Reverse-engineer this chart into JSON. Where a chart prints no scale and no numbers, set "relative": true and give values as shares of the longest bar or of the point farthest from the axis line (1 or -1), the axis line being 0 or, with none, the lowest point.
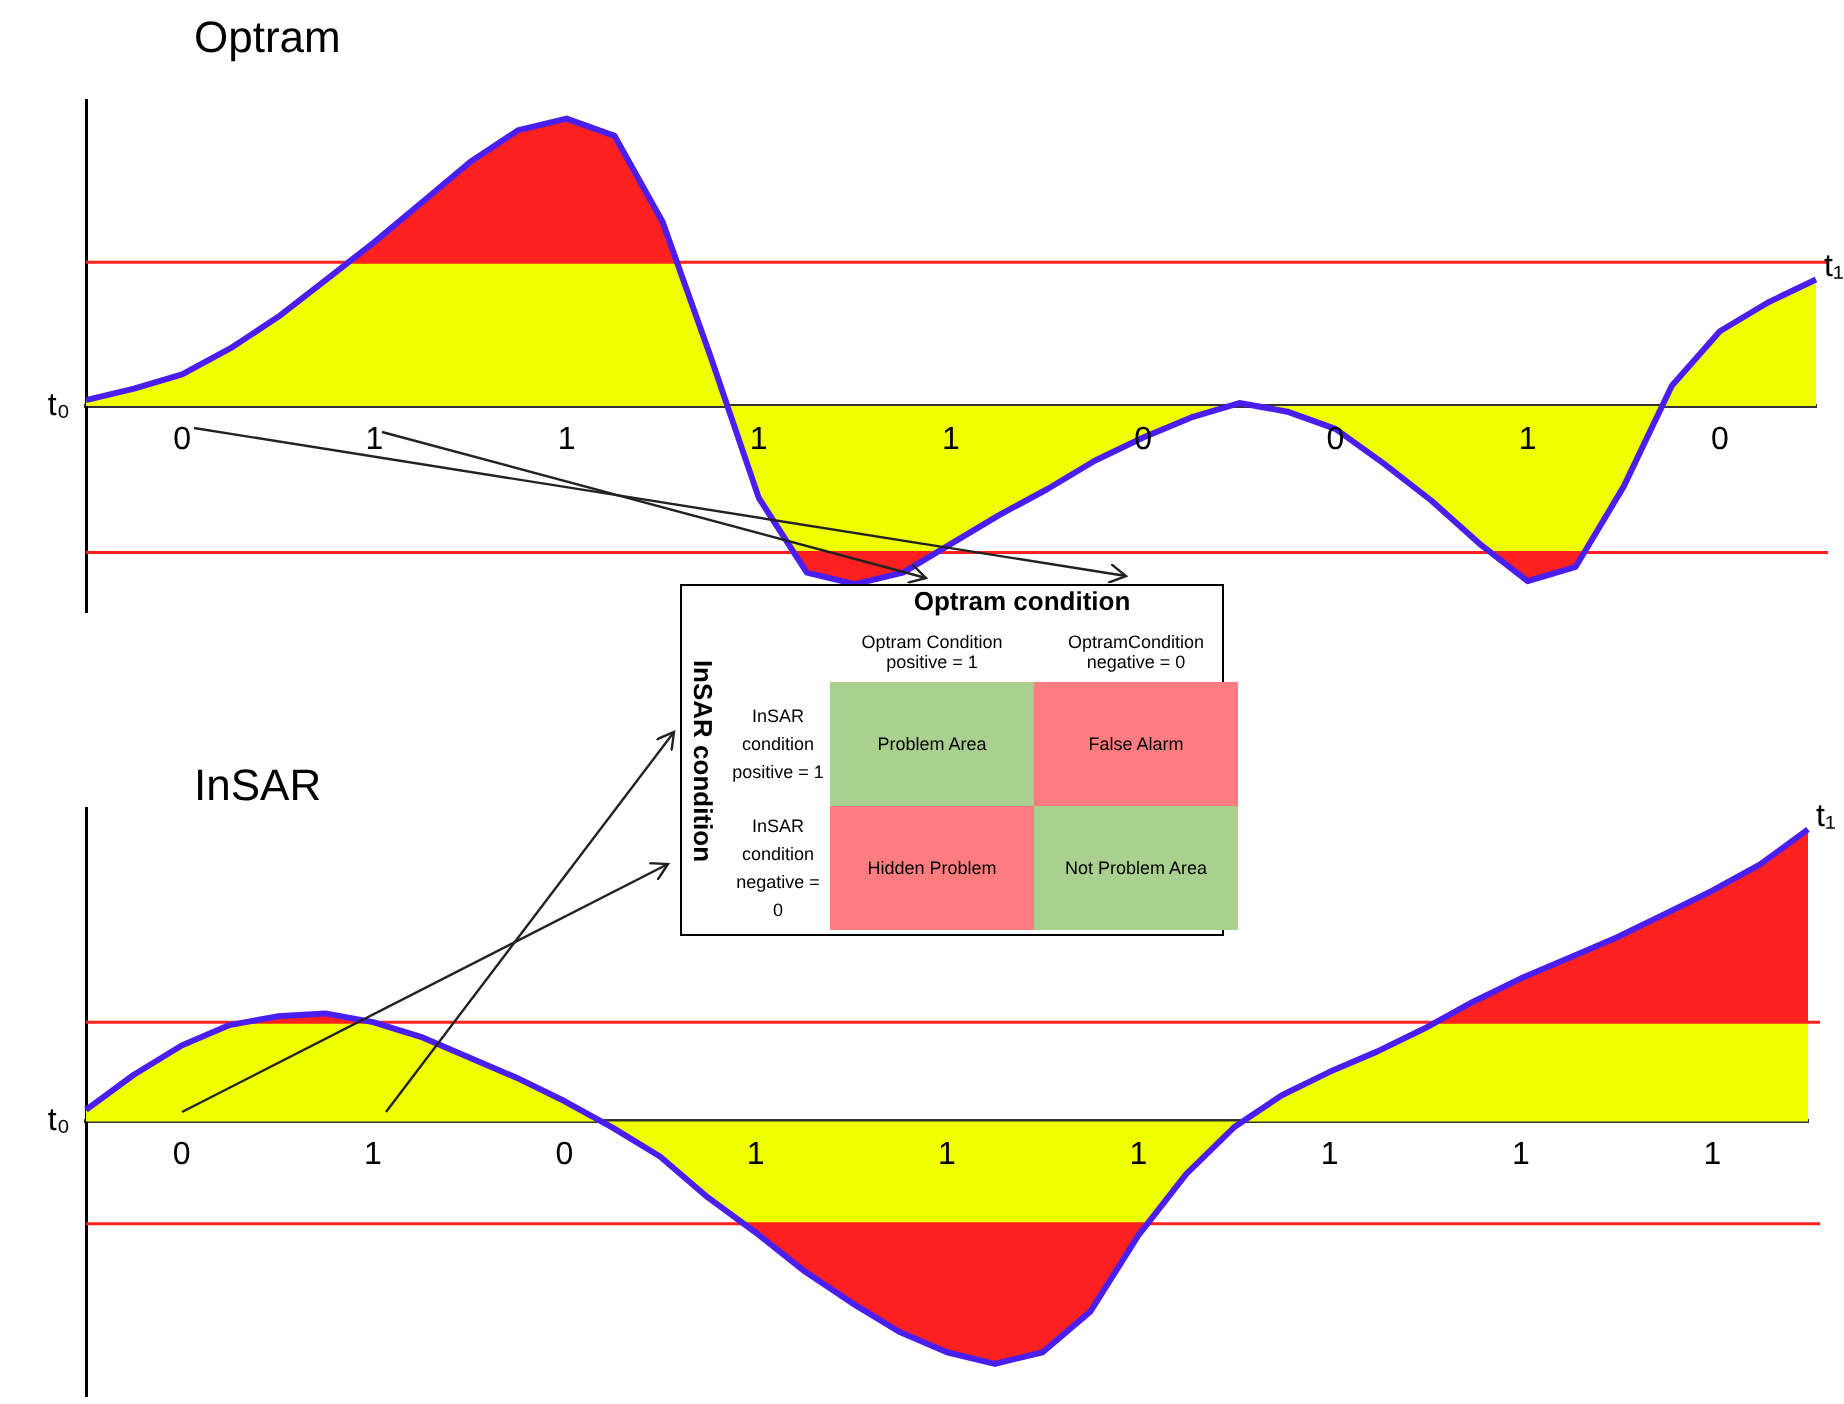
{
  "chart_data": [
    {
      "type": "area",
      "title": "Optram",
      "relative": true,
      "categories": [
        null,
        null,
        null,
        null,
        null,
        null,
        null,
        null,
        null,
        null,
        null,
        null,
        null,
        null,
        null,
        null,
        null,
        null,
        null,
        null,
        null,
        null,
        null,
        null,
        null,
        null,
        null,
        null,
        null,
        null,
        null,
        null,
        null,
        null,
        null,
        null,
        null
      ],
      "colors": [
        "#4b1ef0"
      ],
      "series": [
        {
          "type": "area",
          "color": "#f0ff00",
          "values": [
            0.02,
            0.06,
            0.11,
            0.2,
            0.31,
            0.44,
            0.57,
            0.71,
            0.85,
            0.96,
            1.0,
            0.94,
            0.64,
            0.17,
            -0.32,
            -0.58,
            -0.62,
            -0.58,
            -0.48,
            -0.38,
            -0.29,
            -0.19,
            -0.11,
            -0.04,
            0.01,
            -0.02,
            -0.08,
            -0.2,
            -0.33,
            -0.48,
            -0.61,
            -0.56,
            -0.28,
            0.07,
            0.26,
            0.36,
            0.44
          ]
        }
      ],
      "ref_lines": [
        {
          "axis": "y",
          "value": 0.5,
          "color": "#ff2020"
        },
        {
          "axis": "y",
          "value": -0.51,
          "color": "#ff2020"
        }
      ],
      "annotations": [
        "t₀",
        "t₁",
        "0",
        "1",
        "1",
        "1",
        "1",
        "0",
        "0",
        "1",
        "0"
      ]
    },
    {
      "type": "area",
      "title": "InSAR",
      "relative": true,
      "categories": [
        null,
        null,
        null,
        null,
        null,
        null,
        null,
        null,
        null,
        null,
        null,
        null,
        null,
        null,
        null,
        null,
        null,
        null,
        null,
        null,
        null,
        null,
        null,
        null,
        null,
        null,
        null,
        null,
        null,
        null,
        null,
        null,
        null,
        null,
        null,
        null,
        null
      ],
      "colors": [
        "#4b1ef0"
      ],
      "series": [
        {
          "type": "area",
          "color": "#f0ff00",
          "values": [
            0.04,
            0.16,
            0.26,
            0.33,
            0.36,
            0.37,
            0.34,
            0.29,
            0.22,
            0.15,
            0.07,
            -0.02,
            -0.12,
            -0.26,
            -0.38,
            -0.51,
            -0.62,
            -0.72,
            -0.79,
            -0.83,
            -0.79,
            -0.65,
            -0.39,
            -0.18,
            -0.02,
            0.09,
            0.17,
            0.24,
            0.32,
            0.41,
            0.49,
            0.56,
            0.63,
            0.71,
            0.79,
            0.88,
            1.0
          ]
        }
      ],
      "ref_lines": [
        {
          "axis": "y",
          "value": 0.34,
          "color": "#ff2020"
        },
        {
          "axis": "y",
          "value": -0.35,
          "color": "#ff2020"
        }
      ],
      "annotations": [
        "t₀",
        "t₁",
        "0",
        "1",
        "0",
        "1",
        "1",
        "1",
        "1",
        "1",
        "1"
      ]
    },
    {
      "type": "other",
      "title": "Optram condition",
      "ylabel": "InSAR condition",
      "categories": [
        "Optram Condition positive = 1",
        "OptramCondition negative = 0"
      ],
      "y_categories": [
        "InSAR condition positive = 1",
        "InSAR condition negative = 0"
      ],
      "cell_labels": [
        [
          "Problem Area",
          "False Alarm"
        ],
        [
          "Hidden Problem",
          "Not Problem Area"
        ]
      ],
      "colors": [
        [
          "#a9d08e",
          "#ff7c80"
        ],
        [
          "#ff7c80",
          "#a9d08e"
        ]
      ]
    }
  ]
}
